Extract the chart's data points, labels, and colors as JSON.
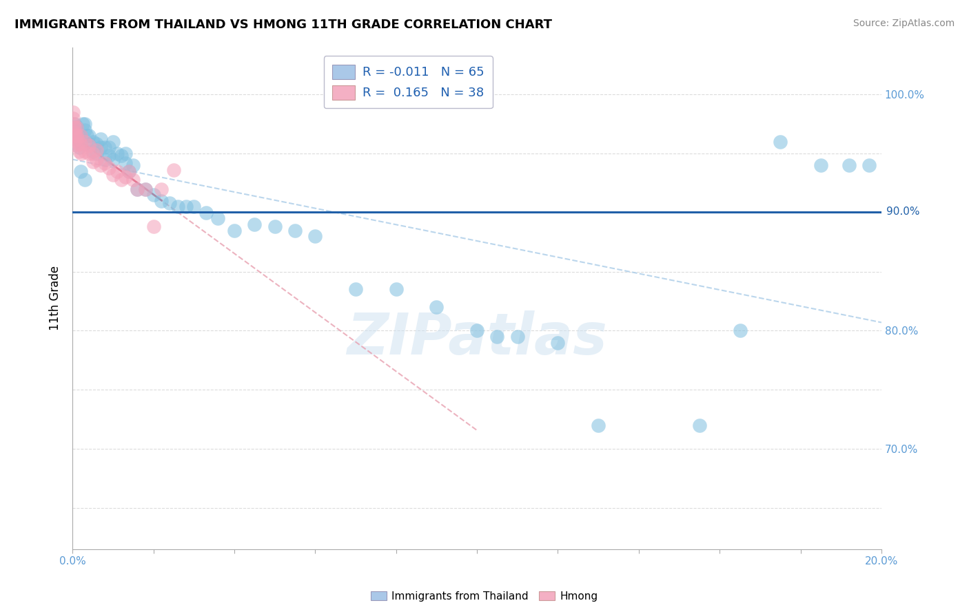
{
  "title": "IMMIGRANTS FROM THAILAND VS HMONG 11TH GRADE CORRELATION CHART",
  "source_text": "Source: ZipAtlas.com",
  "ylabel": "11th Grade",
  "xlim": [
    0.0,
    0.2
  ],
  "ylim": [
    0.615,
    1.04
  ],
  "blue_color": "#7fbfdf",
  "pink_color": "#f4a0b8",
  "r_blue": -0.011,
  "n_blue": 65,
  "r_pink": 0.165,
  "n_pink": 38,
  "hline_y": 0.9005,
  "hline_color": "#2060a8",
  "watermark_text": "ZIPatlas",
  "blue_x": [
    0.0002,
    0.0004,
    0.0006,
    0.0008,
    0.001,
    0.0012,
    0.0014,
    0.0016,
    0.002,
    0.002,
    0.0025,
    0.003,
    0.003,
    0.0035,
    0.004,
    0.004,
    0.005,
    0.005,
    0.006,
    0.006,
    0.007,
    0.007,
    0.008,
    0.008,
    0.009,
    0.009,
    0.01,
    0.01,
    0.011,
    0.012,
    0.013,
    0.013,
    0.014,
    0.015,
    0.016,
    0.018,
    0.02,
    0.022,
    0.024,
    0.026,
    0.028,
    0.03,
    0.033,
    0.036,
    0.04,
    0.045,
    0.05,
    0.055,
    0.06,
    0.07,
    0.08,
    0.09,
    0.1,
    0.105,
    0.11,
    0.12,
    0.13,
    0.155,
    0.165,
    0.175,
    0.185,
    0.192,
    0.197,
    0.002,
    0.003
  ],
  "blue_y": [
    0.97,
    0.975,
    0.97,
    0.965,
    0.973,
    0.968,
    0.963,
    0.955,
    0.965,
    0.96,
    0.975,
    0.975,
    0.97,
    0.965,
    0.965,
    0.958,
    0.96,
    0.952,
    0.958,
    0.95,
    0.962,
    0.955,
    0.955,
    0.945,
    0.955,
    0.948,
    0.96,
    0.945,
    0.95,
    0.948,
    0.95,
    0.942,
    0.935,
    0.94,
    0.92,
    0.92,
    0.915,
    0.91,
    0.908,
    0.905,
    0.905,
    0.905,
    0.9,
    0.895,
    0.885,
    0.89,
    0.888,
    0.885,
    0.88,
    0.835,
    0.835,
    0.82,
    0.8,
    0.795,
    0.795,
    0.79,
    0.72,
    0.72,
    0.8,
    0.96,
    0.94,
    0.94,
    0.94,
    0.935,
    0.928
  ],
  "pink_x": [
    0.0001,
    0.0002,
    0.0003,
    0.0004,
    0.0005,
    0.0006,
    0.0007,
    0.0008,
    0.001,
    0.001,
    0.0012,
    0.0014,
    0.0016,
    0.002,
    0.002,
    0.0022,
    0.003,
    0.003,
    0.004,
    0.004,
    0.005,
    0.005,
    0.006,
    0.006,
    0.007,
    0.008,
    0.009,
    0.01,
    0.011,
    0.012,
    0.013,
    0.014,
    0.015,
    0.016,
    0.018,
    0.02,
    0.022,
    0.025
  ],
  "pink_y": [
    0.985,
    0.98,
    0.975,
    0.972,
    0.968,
    0.965,
    0.961,
    0.957,
    0.972,
    0.966,
    0.963,
    0.958,
    0.952,
    0.965,
    0.958,
    0.95,
    0.96,
    0.952,
    0.957,
    0.95,
    0.95,
    0.943,
    0.953,
    0.945,
    0.94,
    0.942,
    0.938,
    0.932,
    0.935,
    0.928,
    0.93,
    0.935,
    0.928,
    0.92,
    0.92,
    0.888,
    0.92,
    0.936
  ],
  "ytick_positions": [
    0.65,
    0.7,
    0.75,
    0.8,
    0.85,
    0.9,
    0.95,
    1.0
  ],
  "ytick_shown": {
    "0.70": "70.0%",
    "0.80": "80.0%",
    "0.90": "90.0%",
    "1.00": "100.0%"
  }
}
